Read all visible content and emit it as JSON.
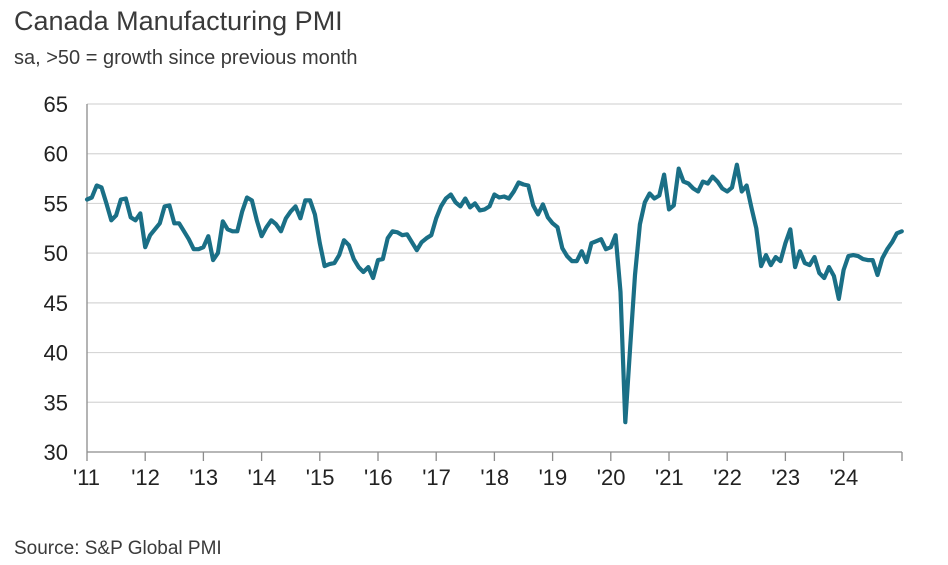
{
  "chart_data": {
    "type": "line",
    "title": "Canada Manufacturing PMI",
    "subtitle": "sa, >50 = growth since previous month",
    "source": "Source: S&P Global PMI",
    "xlabel": "",
    "ylabel": "",
    "ylim": [
      30,
      65
    ],
    "yticks": [
      "30",
      "35",
      "40",
      "45",
      "50",
      "55",
      "60",
      "65"
    ],
    "xticks": [
      "'11",
      "'12",
      "'13",
      "'14",
      "'15",
      "'16",
      "'17",
      "'18",
      "'19",
      "'20",
      "'21",
      "'22",
      "'23",
      "'24"
    ],
    "x_start": "2011-01",
    "line_color": "#1a6f86",
    "grid": true,
    "series": [
      {
        "name": "Canada Manufacturing PMI",
        "values": [
          55.4,
          55.6,
          56.8,
          56.6,
          55.0,
          53.3,
          53.8,
          55.4,
          55.5,
          53.6,
          53.3,
          54.0,
          50.6,
          51.8,
          52.4,
          53.0,
          54.7,
          54.8,
          53.0,
          53.0,
          52.2,
          51.4,
          50.4,
          50.4,
          50.6,
          51.7,
          49.3,
          50.0,
          53.2,
          52.4,
          52.2,
          52.2,
          54.2,
          55.6,
          55.3,
          53.3,
          51.7,
          52.6,
          53.3,
          52.9,
          52.2,
          53.5,
          54.2,
          54.7,
          53.5,
          55.3,
          55.3,
          53.9,
          51.0,
          48.7,
          48.9,
          49.0,
          49.8,
          51.3,
          50.8,
          49.4,
          48.6,
          48.1,
          48.6,
          47.5,
          49.3,
          49.4,
          51.5,
          52.2,
          52.1,
          51.8,
          51.9,
          51.1,
          50.3,
          51.1,
          51.5,
          51.8,
          53.5,
          54.7,
          55.5,
          55.9,
          55.1,
          54.7,
          55.5,
          54.6,
          55.0,
          54.3,
          54.4,
          54.7,
          55.9,
          55.6,
          55.7,
          55.5,
          56.2,
          57.1,
          56.9,
          56.8,
          54.8,
          53.9,
          54.9,
          53.6,
          53.0,
          52.6,
          50.5,
          49.7,
          49.2,
          49.2,
          50.2,
          49.1,
          51.0,
          51.2,
          51.4,
          50.4,
          50.6,
          51.8,
          46.1,
          33.0,
          40.6,
          47.8,
          52.9,
          55.1,
          56.0,
          55.5,
          55.8,
          57.9,
          54.4,
          54.8,
          58.5,
          57.2,
          57.0,
          56.5,
          56.2,
          57.2,
          57.0,
          57.7,
          57.2,
          56.5,
          56.2,
          56.6,
          58.9,
          56.2,
          56.8,
          54.6,
          52.5,
          48.7,
          49.8,
          48.8,
          49.6,
          49.2,
          51.0,
          52.4,
          48.6,
          50.2,
          49.0,
          48.8,
          49.6,
          48.0,
          47.5,
          48.6,
          47.7,
          45.4,
          48.3,
          49.7,
          49.8,
          49.7,
          49.4,
          49.3,
          49.3,
          47.8,
          49.5,
          50.4,
          51.1,
          52.0,
          52.2
        ]
      }
    ]
  }
}
